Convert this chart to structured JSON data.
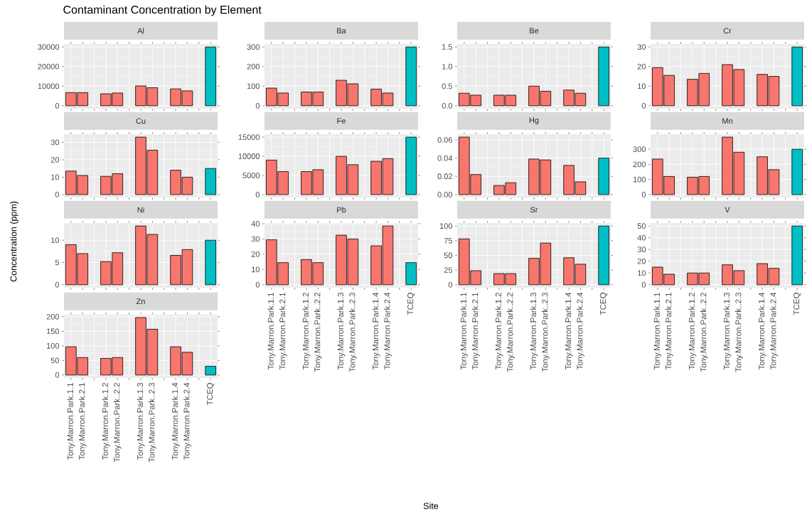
{
  "chart_data": [
    {
      "type": "bar",
      "title": "Al",
      "annotations": [
        "Contaminant Concentration by Element"
      ],
      "values": [
        6700,
        6700,
        null,
        6100,
        6500,
        null,
        10100,
        9200,
        null,
        8600,
        7600,
        null,
        30000
      ],
      "colors": [
        "#f8766d",
        "#f8766d",
        "#f8766d",
        "#f8766d",
        "#f8766d",
        "#f8766d",
        "#f8766d",
        "#f8766d",
        "#f8766d",
        "#f8766d",
        "#f8766d",
        "#f8766d",
        "#00bfc4"
      ],
      "ylim": [
        -1500,
        31500
      ],
      "yticks": [
        0,
        10000,
        20000,
        30000
      ],
      "grid": true,
      "tick_labels": "y"
    },
    {
      "type": "bar",
      "title": "Ba",
      "values": [
        90,
        65,
        null,
        70,
        70,
        null,
        130,
        112,
        null,
        85,
        65,
        null,
        300
      ],
      "colors": [
        "#f8766d",
        "#f8766d",
        "#f8766d",
        "#f8766d",
        "#f8766d",
        "#f8766d",
        "#f8766d",
        "#f8766d",
        "#f8766d",
        "#f8766d",
        "#f8766d",
        "#f8766d",
        "#00bfc4"
      ],
      "ylim": [
        -15,
        315
      ],
      "yticks": [
        0,
        100,
        200,
        300
      ],
      "grid": true,
      "tick_labels": "y"
    },
    {
      "type": "bar",
      "title": "Be",
      "values": [
        0.32,
        0.27,
        null,
        0.27,
        0.27,
        null,
        0.5,
        0.37,
        null,
        0.4,
        0.32,
        null,
        1.5
      ],
      "colors": [
        "#f8766d",
        "#f8766d",
        "#f8766d",
        "#f8766d",
        "#f8766d",
        "#f8766d",
        "#f8766d",
        "#f8766d",
        "#f8766d",
        "#f8766d",
        "#f8766d",
        "#f8766d",
        "#00bfc4"
      ],
      "ylim": [
        -0.075,
        1.575
      ],
      "yticks": [
        {
          "value": 0,
          "label": "0.0"
        },
        {
          "value": 0.5,
          "label": "0.5"
        },
        {
          "value": 1,
          "label": "1.0"
        },
        {
          "value": 1.5,
          "label": "1.5"
        }
      ],
      "grid": true,
      "tick_labels": "y"
    },
    {
      "type": "bar",
      "title": "Cr",
      "values": [
        19.5,
        15.5,
        null,
        13.5,
        16.5,
        null,
        21,
        18.5,
        null,
        16,
        15,
        null,
        30
      ],
      "colors": [
        "#f8766d",
        "#f8766d",
        "#f8766d",
        "#f8766d",
        "#f8766d",
        "#f8766d",
        "#f8766d",
        "#f8766d",
        "#f8766d",
        "#f8766d",
        "#f8766d",
        "#f8766d",
        "#00bfc4"
      ],
      "ylim": [
        -1.5,
        31.5
      ],
      "yticks": [
        0,
        10,
        20,
        30
      ],
      "grid": true,
      "tick_labels": "y"
    },
    {
      "type": "bar",
      "title": "Cu",
      "values": [
        13.5,
        11,
        null,
        10.5,
        12,
        null,
        33,
        25.5,
        null,
        14,
        10,
        null,
        15
      ],
      "colors": [
        "#f8766d",
        "#f8766d",
        "#f8766d",
        "#f8766d",
        "#f8766d",
        "#f8766d",
        "#f8766d",
        "#f8766d",
        "#f8766d",
        "#f8766d",
        "#f8766d",
        "#f8766d",
        "#00bfc4"
      ],
      "ylim": [
        -1.65,
        34.65
      ],
      "yticks": [
        0,
        10,
        20,
        30
      ],
      "grid": true,
      "tick_labels": "y"
    },
    {
      "type": "bar",
      "title": "Fe",
      "values": [
        9000,
        6000,
        null,
        6000,
        6500,
        null,
        10000,
        7800,
        null,
        8700,
        9400,
        null,
        15000
      ],
      "colors": [
        "#f8766d",
        "#f8766d",
        "#f8766d",
        "#f8766d",
        "#f8766d",
        "#f8766d",
        "#f8766d",
        "#f8766d",
        "#f8766d",
        "#f8766d",
        "#f8766d",
        "#f8766d",
        "#00bfc4"
      ],
      "ylim": [
        -750,
        15750
      ],
      "yticks": [
        0,
        5000,
        10000,
        15000
      ],
      "grid": true,
      "tick_labels": "y"
    },
    {
      "type": "bar",
      "title": "Hg",
      "values": [
        0.063,
        0.022,
        null,
        0.01,
        0.013,
        null,
        0.039,
        0.038,
        null,
        0.032,
        0.014,
        null,
        0.04
      ],
      "colors": [
        "#f8766d",
        "#f8766d",
        "#f8766d",
        "#f8766d",
        "#f8766d",
        "#f8766d",
        "#f8766d",
        "#f8766d",
        "#f8766d",
        "#f8766d",
        "#f8766d",
        "#f8766d",
        "#00bfc4"
      ],
      "ylim": [
        -0.00315,
        0.06615
      ],
      "yticks": [
        {
          "value": 0,
          "label": "0.00"
        },
        {
          "value": 0.02,
          "label": "0.02"
        },
        {
          "value": 0.04,
          "label": "0.04"
        },
        {
          "value": 0.06,
          "label": "0.06"
        }
      ],
      "grid": true,
      "tick_labels": "y"
    },
    {
      "type": "bar",
      "title": "Mn",
      "values": [
        235,
        120,
        null,
        115,
        120,
        null,
        380,
        280,
        null,
        250,
        165,
        null,
        300
      ],
      "colors": [
        "#f8766d",
        "#f8766d",
        "#f8766d",
        "#f8766d",
        "#f8766d",
        "#f8766d",
        "#f8766d",
        "#f8766d",
        "#f8766d",
        "#f8766d",
        "#f8766d",
        "#f8766d",
        "#00bfc4"
      ],
      "ylim": [
        -19,
        399
      ],
      "yticks": [
        0,
        100,
        200,
        300
      ],
      "grid": true,
      "tick_labels": "y"
    },
    {
      "type": "bar",
      "title": "Ni",
      "ylabel": "Concentration (ppm)",
      "values": [
        9,
        7,
        null,
        5.2,
        7.2,
        null,
        13.2,
        11.3,
        null,
        6.6,
        7.9,
        null,
        10
      ],
      "colors": [
        "#f8766d",
        "#f8766d",
        "#f8766d",
        "#f8766d",
        "#f8766d",
        "#f8766d",
        "#f8766d",
        "#f8766d",
        "#f8766d",
        "#f8766d",
        "#f8766d",
        "#f8766d",
        "#00bfc4"
      ],
      "ylim": [
        -0.66,
        13.86
      ],
      "yticks": [
        0,
        5,
        10
      ],
      "grid": true,
      "tick_labels": "y"
    },
    {
      "type": "bar",
      "title": "Pb",
      "xlabel": "Site",
      "categories": [
        "Tony.Marron.Park.1.1",
        "Tony.Marron.Park.2.1",
        null,
        "Tony.Marron.Park.1.2",
        "Tony.Marron.Park..2.2",
        null,
        "Tony.Marron.Park.1.3",
        "Tony.Marron.Park..2.3",
        null,
        "Tony.Marron.Park.1.4",
        "Tony.Marron.Park.2.4",
        null,
        "TCEQ"
      ],
      "values": [
        29.5,
        14.5,
        null,
        16.5,
        14.5,
        null,
        32.5,
        30,
        null,
        25.5,
        38.5,
        null,
        14.5
      ],
      "colors": [
        "#f8766d",
        "#f8766d",
        "#f8766d",
        "#f8766d",
        "#f8766d",
        "#f8766d",
        "#f8766d",
        "#f8766d",
        "#f8766d",
        "#f8766d",
        "#f8766d",
        "#f8766d",
        "#00bfc4"
      ],
      "ylim": [
        -1.925,
        40.425
      ],
      "yticks": [
        0,
        10,
        20,
        30,
        40
      ],
      "grid": true
    },
    {
      "type": "bar",
      "title": "Sr",
      "categories": [
        "Tony.Marron.Park.1.1",
        "Tony.Marron.Park.2.1",
        null,
        "Tony.Marron.Park.1.2",
        "Tony.Marron.Park..2.2",
        null,
        "Tony.Marron.Park.1.3",
        "Tony.Marron.Park..2.3",
        null,
        "Tony.Marron.Park.1.4",
        "Tony.Marron.Park.2.4",
        null,
        "TCEQ"
      ],
      "values": [
        78,
        24,
        null,
        19,
        19,
        null,
        45,
        71,
        null,
        46,
        35,
        null,
        100
      ],
      "colors": [
        "#f8766d",
        "#f8766d",
        "#f8766d",
        "#f8766d",
        "#f8766d",
        "#f8766d",
        "#f8766d",
        "#f8766d",
        "#f8766d",
        "#f8766d",
        "#f8766d",
        "#f8766d",
        "#00bfc4"
      ],
      "ylim": [
        -5,
        105
      ],
      "yticks": [
        0,
        25,
        50,
        75,
        100
      ],
      "grid": true
    },
    {
      "type": "bar",
      "title": "V",
      "categories": [
        "Tony.Marron.Park.1.1",
        "Tony.Marron.Park.2.1",
        null,
        "Tony.Marron.Park.1.2",
        "Tony.Marron.Park..2.2",
        null,
        "Tony.Marron.Park.1.3",
        "Tony.Marron.Park..2.3",
        null,
        "Tony.Marron.Park.1.4",
        "Tony.Marron.Park.2.4",
        null,
        "TCEQ"
      ],
      "values": [
        15,
        9,
        null,
        10,
        10,
        null,
        17,
        12,
        null,
        18,
        14,
        null,
        50
      ],
      "colors": [
        "#f8766d",
        "#f8766d",
        "#f8766d",
        "#f8766d",
        "#f8766d",
        "#f8766d",
        "#f8766d",
        "#f8766d",
        "#f8766d",
        "#f8766d",
        "#f8766d",
        "#f8766d",
        "#00bfc4"
      ],
      "ylim": [
        -2.5,
        52.5
      ],
      "yticks": [
        0,
        10,
        20,
        30,
        40,
        50
      ],
      "grid": true
    },
    {
      "type": "bar",
      "title": "Zn",
      "categories": [
        "Tony.Marron.Park.1.1",
        "Tony.Marron.Park.2.1",
        null,
        "Tony.Marron.Park.1.2",
        "Tony.Marron.Park..2.2",
        null,
        "Tony.Marron.Park.1.3",
        "Tony.Marron.Park..2.3",
        null,
        "Tony.Marron.Park.1.4",
        "Tony.Marron.Park.2.4",
        null,
        "TCEQ"
      ],
      "values": [
        97,
        60,
        null,
        57,
        60,
        null,
        197,
        157,
        null,
        97,
        78,
        null,
        30
      ],
      "colors": [
        "#f8766d",
        "#f8766d",
        "#f8766d",
        "#f8766d",
        "#f8766d",
        "#f8766d",
        "#f8766d",
        "#f8766d",
        "#f8766d",
        "#f8766d",
        "#f8766d",
        "#f8766d",
        "#00bfc4"
      ],
      "ylim": [
        -9.85,
        206.85
      ],
      "yticks": [
        0,
        50,
        100,
        150,
        200
      ],
      "grid": true
    }
  ]
}
